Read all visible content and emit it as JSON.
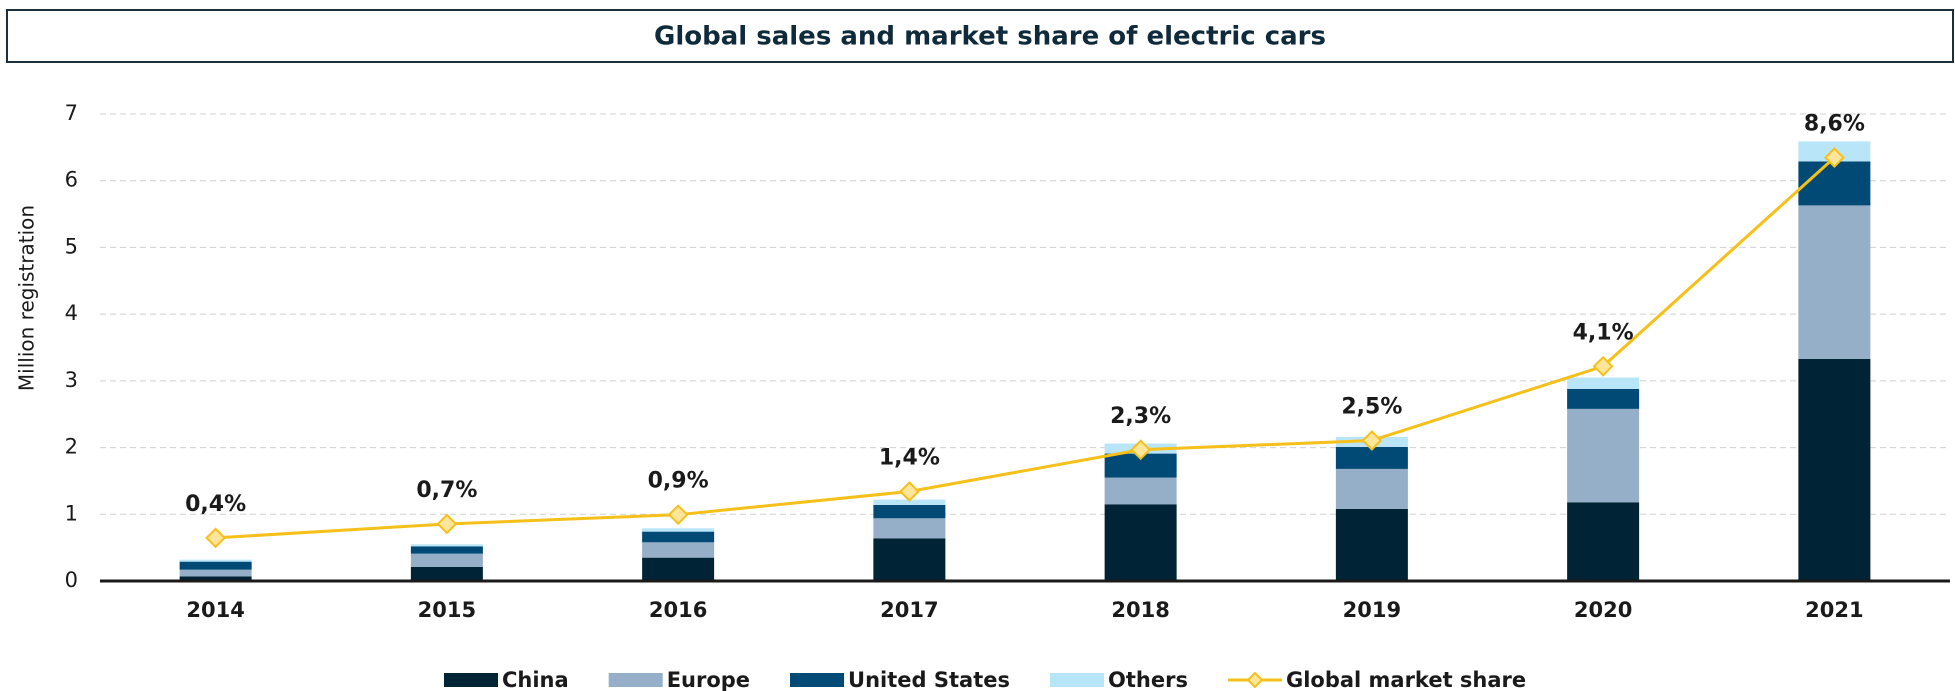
{
  "chart_data": {
    "type": "bar",
    "stacked": true,
    "title": "Global sales and market share of electric cars",
    "y_label": "Million registration",
    "categories": [
      "2014",
      "2015",
      "2016",
      "2017",
      "2018",
      "2019",
      "2020",
      "2021"
    ],
    "series": [
      {
        "name": "China",
        "color": "#002335",
        "values": [
          0.07,
          0.21,
          0.35,
          0.64,
          1.15,
          1.08,
          1.18,
          3.33
        ]
      },
      {
        "name": "Europe",
        "color": "#94afc7",
        "values": [
          0.1,
          0.2,
          0.23,
          0.3,
          0.4,
          0.6,
          1.4,
          2.3
        ]
      },
      {
        "name": "United States",
        "color": "#004a75",
        "values": [
          0.12,
          0.11,
          0.16,
          0.2,
          0.36,
          0.33,
          0.3,
          0.66
        ]
      },
      {
        "name": "Others",
        "color": "#b9e5f9",
        "values": [
          0.03,
          0.03,
          0.05,
          0.08,
          0.15,
          0.15,
          0.17,
          0.3
        ]
      },
      {
        "name": "Global market share",
        "color": "#f5c01a",
        "type": "line",
        "axis": "y2",
        "values": [
          0.4,
          0.7,
          0.9,
          1.4,
          2.3,
          2.5,
          4.1,
          8.6
        ],
        "value_labels": [
          "0,4%",
          "0,7%",
          "0,9%",
          "1,4%",
          "2,3%",
          "2,5%",
          "4,1%",
          "8,6%"
        ]
      }
    ],
    "ylim": [
      0,
      7
    ],
    "yticks": [
      0,
      1,
      2,
      3,
      4,
      5,
      6,
      7
    ],
    "y2lim": [
      -0.53,
      9.54
    ],
    "grid": true,
    "legend": "bottom"
  }
}
